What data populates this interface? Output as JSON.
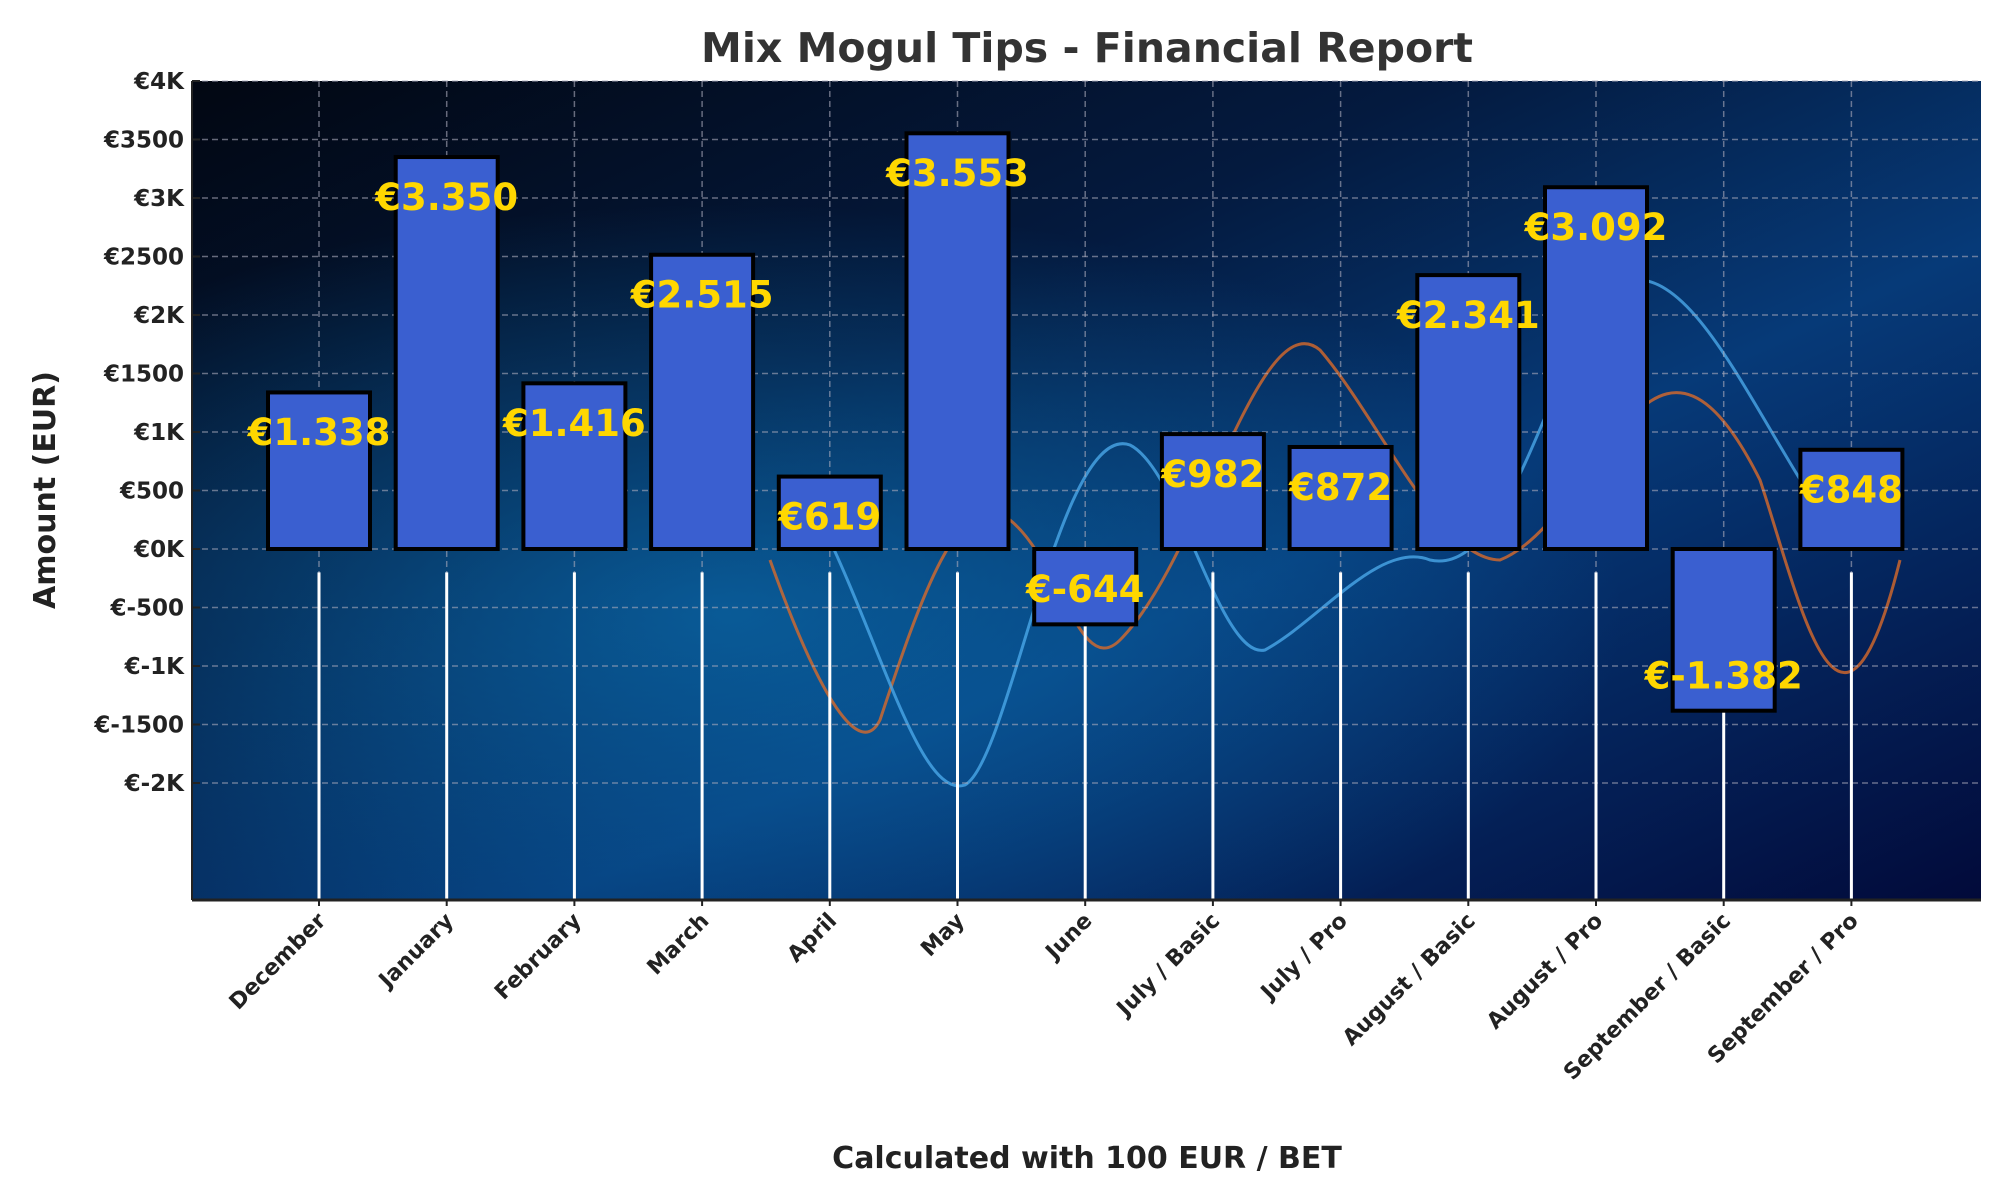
{
  "chart_data": {
    "type": "bar",
    "title": "Mix Mogul Tips - Financial Report",
    "xlabel": "Calculated with 100 EUR / BET",
    "ylabel": "Amount (EUR)",
    "categories": [
      "December",
      "January",
      "February",
      "March",
      "April",
      "May",
      "June",
      "July / Basic",
      "July / Pro",
      "August / Basic",
      "August / Pro",
      "September / Basic",
      "September / Pro"
    ],
    "values": [
      1338,
      3350,
      1416,
      2515,
      619,
      3553,
      -644,
      982,
      872,
      2341,
      3092,
      -1382,
      848
    ],
    "value_labels": [
      "€1.338",
      "€3.350",
      "€1.416",
      "€2.515",
      "€619",
      "€3.553",
      "€-644",
      "€982",
      "€872",
      "€2.341",
      "€3.092",
      "€-1.382",
      "€848"
    ],
    "ylim": [
      -3000,
      4000
    ],
    "yticks": [
      -2000,
      -1500,
      -1000,
      -500,
      0,
      500,
      1000,
      1500,
      2000,
      2500,
      3000,
      3500,
      4000
    ],
    "ytick_labels": [
      "€-2K",
      "€-1500",
      "€-1K",
      "€-500",
      "€0K",
      "€500",
      "€1K",
      "€1500",
      "€2K",
      "€2500",
      "€3K",
      "€3500",
      "€4K"
    ],
    "grid": true,
    "colors": {
      "bar": "#3a5fd0",
      "bar_edge": "#000000",
      "label": "#FFD700",
      "text": "#222222",
      "title": "#333333"
    }
  }
}
